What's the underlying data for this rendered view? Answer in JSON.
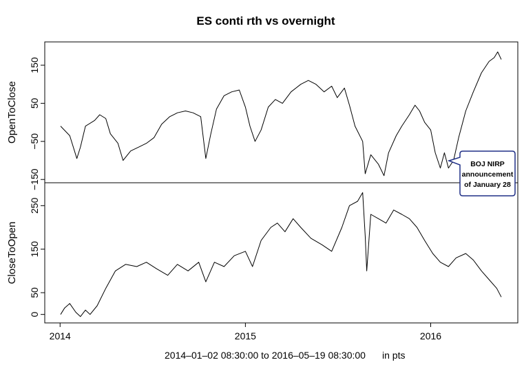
{
  "chart_data": {
    "type": "line",
    "title": "ES conti rth vs overnight",
    "subtitle": "2014‒01‒02 08:30:00 to 2016‒05‒19 08:30:00",
    "units_label": "in pts",
    "x_range": [
      "2014-01-02",
      "2016-05-19"
    ],
    "x_ticks": [
      {
        "date": "2014-01-01",
        "label": "2014"
      },
      {
        "date": "2015-01-01",
        "label": "2015"
      },
      {
        "date": "2016-01-01",
        "label": "2016"
      }
    ],
    "grid": false,
    "panels": [
      {
        "name": "OpenToClose",
        "ylabel": "OpenToClose",
        "ylim": [
          -155,
          195
        ],
        "y_ticks": [
          {
            "value": -150,
            "label": "−150"
          },
          {
            "value": -50,
            "label": "−50"
          },
          {
            "value": 50,
            "label": "50"
          },
          {
            "value": 150,
            "label": "150"
          }
        ],
        "points": [
          [
            "2014-01-02",
            -10
          ],
          [
            "2014-01-20",
            -35
          ],
          [
            "2014-02-03",
            -95
          ],
          [
            "2014-02-10",
            -65
          ],
          [
            "2014-02-20",
            -10
          ],
          [
            "2014-03-10",
            5
          ],
          [
            "2014-03-20",
            20
          ],
          [
            "2014-04-01",
            10
          ],
          [
            "2014-04-10",
            -30
          ],
          [
            "2014-04-25",
            -55
          ],
          [
            "2014-05-05",
            -100
          ],
          [
            "2014-05-20",
            -75
          ],
          [
            "2014-06-05",
            -65
          ],
          [
            "2014-06-20",
            -55
          ],
          [
            "2014-07-05",
            -40
          ],
          [
            "2014-07-20",
            -5
          ],
          [
            "2014-08-05",
            15
          ],
          [
            "2014-08-20",
            25
          ],
          [
            "2014-09-05",
            30
          ],
          [
            "2014-09-20",
            25
          ],
          [
            "2014-10-05",
            15
          ],
          [
            "2014-10-15",
            -95
          ],
          [
            "2014-10-25",
            -30
          ],
          [
            "2014-11-05",
            35
          ],
          [
            "2014-11-20",
            70
          ],
          [
            "2014-12-05",
            80
          ],
          [
            "2014-12-20",
            85
          ],
          [
            "2015-01-01",
            40
          ],
          [
            "2015-01-10",
            -10
          ],
          [
            "2015-01-20",
            -50
          ],
          [
            "2015-02-01",
            -20
          ],
          [
            "2015-02-15",
            40
          ],
          [
            "2015-03-01",
            60
          ],
          [
            "2015-03-15",
            50
          ],
          [
            "2015-04-01",
            80
          ],
          [
            "2015-04-20",
            100
          ],
          [
            "2015-05-05",
            110
          ],
          [
            "2015-05-20",
            100
          ],
          [
            "2015-06-05",
            80
          ],
          [
            "2015-06-20",
            95
          ],
          [
            "2015-07-01",
            65
          ],
          [
            "2015-07-15",
            90
          ],
          [
            "2015-07-25",
            45
          ],
          [
            "2015-08-05",
            -10
          ],
          [
            "2015-08-20",
            -50
          ],
          [
            "2015-08-25",
            -135
          ],
          [
            "2015-09-05",
            -85
          ],
          [
            "2015-09-20",
            -110
          ],
          [
            "2015-10-01",
            -140
          ],
          [
            "2015-10-10",
            -80
          ],
          [
            "2015-10-25",
            -35
          ],
          [
            "2015-11-05",
            -10
          ],
          [
            "2015-11-20",
            20
          ],
          [
            "2015-12-01",
            45
          ],
          [
            "2015-12-10",
            30
          ],
          [
            "2015-12-20",
            0
          ],
          [
            "2016-01-01",
            -20
          ],
          [
            "2016-01-10",
            -80
          ],
          [
            "2016-01-20",
            -120
          ],
          [
            "2016-01-28",
            -80
          ],
          [
            "2016-02-05",
            -120
          ],
          [
            "2016-02-15",
            -100
          ],
          [
            "2016-02-25",
            -40
          ],
          [
            "2016-03-10",
            30
          ],
          [
            "2016-03-25",
            80
          ],
          [
            "2016-04-10",
            130
          ],
          [
            "2016-04-25",
            160
          ],
          [
            "2016-05-05",
            170
          ],
          [
            "2016-05-12",
            185
          ],
          [
            "2016-05-19",
            165
          ]
        ]
      },
      {
        "name": "CloseToOpen",
        "ylabel": "CloseToOpen",
        "ylim": [
          -10,
          290
        ],
        "y_ticks": [
          {
            "value": 0,
            "label": "0"
          },
          {
            "value": 50,
            "label": "50"
          },
          {
            "value": 150,
            "label": "150"
          },
          {
            "value": 250,
            "label": "250"
          }
        ],
        "points": [
          [
            "2014-01-02",
            0
          ],
          [
            "2014-01-10",
            15
          ],
          [
            "2014-01-20",
            25
          ],
          [
            "2014-02-01",
            5
          ],
          [
            "2014-02-10",
            -5
          ],
          [
            "2014-02-20",
            10
          ],
          [
            "2014-03-01",
            0
          ],
          [
            "2014-03-15",
            20
          ],
          [
            "2014-04-01",
            60
          ],
          [
            "2014-04-20",
            100
          ],
          [
            "2014-05-10",
            115
          ],
          [
            "2014-06-01",
            110
          ],
          [
            "2014-06-20",
            120
          ],
          [
            "2014-07-10",
            105
          ],
          [
            "2014-08-01",
            90
          ],
          [
            "2014-08-20",
            115
          ],
          [
            "2014-09-10",
            100
          ],
          [
            "2014-10-01",
            120
          ],
          [
            "2014-10-15",
            75
          ],
          [
            "2014-11-01",
            120
          ],
          [
            "2014-11-20",
            110
          ],
          [
            "2014-12-10",
            135
          ],
          [
            "2015-01-01",
            145
          ],
          [
            "2015-01-15",
            110
          ],
          [
            "2015-02-01",
            170
          ],
          [
            "2015-02-20",
            200
          ],
          [
            "2015-03-05",
            210
          ],
          [
            "2015-03-20",
            190
          ],
          [
            "2015-04-05",
            220
          ],
          [
            "2015-04-20",
            200
          ],
          [
            "2015-05-10",
            175
          ],
          [
            "2015-06-01",
            160
          ],
          [
            "2015-06-20",
            145
          ],
          [
            "2015-07-10",
            200
          ],
          [
            "2015-07-25",
            250
          ],
          [
            "2015-08-10",
            260
          ],
          [
            "2015-08-20",
            280
          ],
          [
            "2015-08-25",
            180
          ],
          [
            "2015-08-28",
            100
          ],
          [
            "2015-09-05",
            230
          ],
          [
            "2015-09-20",
            220
          ],
          [
            "2015-10-05",
            210
          ],
          [
            "2015-10-20",
            240
          ],
          [
            "2015-11-05",
            230
          ],
          [
            "2015-11-20",
            220
          ],
          [
            "2015-12-05",
            200
          ],
          [
            "2015-12-20",
            170
          ],
          [
            "2016-01-05",
            140
          ],
          [
            "2016-01-20",
            120
          ],
          [
            "2016-02-05",
            110
          ],
          [
            "2016-02-20",
            130
          ],
          [
            "2016-03-10",
            140
          ],
          [
            "2016-03-25",
            125
          ],
          [
            "2016-04-10",
            100
          ],
          [
            "2016-04-25",
            80
          ],
          [
            "2016-05-10",
            60
          ],
          [
            "2016-05-19",
            40
          ]
        ]
      }
    ],
    "annotation": {
      "lines": [
        "BOJ NIRP",
        "announcement",
        "of January 28"
      ],
      "date": "2016-01-28",
      "panel": "OpenToClose",
      "border_color": "#1f2f86"
    }
  }
}
